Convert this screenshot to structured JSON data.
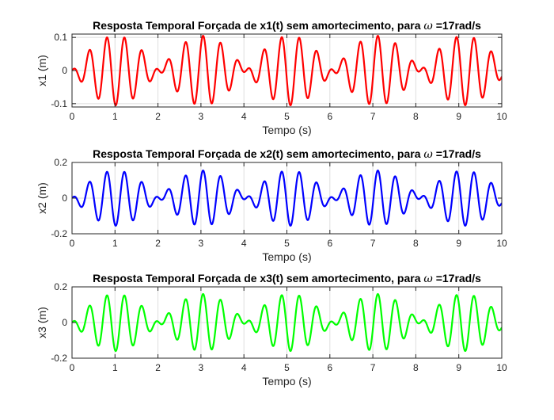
{
  "chart_data": [
    {
      "type": "line",
      "title_prefix": "Resposta Temporal Forçada de x1(t) sem amortecimento, para ",
      "title_symbol": "ω",
      "title_suffix": " =17rad/s",
      "xlabel": "Tempo (s)",
      "ylabel": "x1 (m)",
      "xlim": [
        0,
        10
      ],
      "ylim": [
        -0.11,
        0.11
      ],
      "xticks": [
        0,
        1,
        2,
        3,
        4,
        5,
        6,
        7,
        8,
        9,
        10
      ],
      "yticks": [
        -0.1,
        0,
        0.1
      ],
      "ytick_labels": [
        "-0.1",
        "0",
        "0.1"
      ],
      "grid": true,
      "series": [
        {
          "color": "#ff0000",
          "forcing_frequency_rad_s": 17,
          "beat_frequency_rad_s": 3.1,
          "amplitude_m": 0.105,
          "x": [
            0,
            0.5,
            1,
            1.5,
            2,
            2.5,
            3,
            3.5,
            4,
            4.5,
            5,
            5.5,
            6,
            6.5,
            7,
            7.5,
            8,
            8.5,
            9,
            9.5,
            10
          ],
          "envelope": [
            0,
            0.071,
            0.105,
            0.074,
            0.003,
            0.068,
            0.105,
            0.077,
            0.006,
            0.065,
            0.105,
            0.08,
            0.01,
            0.062,
            0.105,
            0.083,
            0.013,
            0.059,
            0.104,
            0.085,
            0.016
          ]
        }
      ]
    },
    {
      "type": "line",
      "title_prefix": "Resposta Temporal Forçada de x2(t) sem amortecimento, para ",
      "title_symbol": "ω",
      "title_suffix": " =17rad/s",
      "xlabel": "Tempo (s)",
      "ylabel": "x2 (m)",
      "xlim": [
        0,
        10
      ],
      "ylim": [
        -0.2,
        0.2
      ],
      "xticks": [
        0,
        1,
        2,
        3,
        4,
        5,
        6,
        7,
        8,
        9,
        10
      ],
      "yticks": [
        -0.2,
        0,
        0.2
      ],
      "ytick_labels": [
        "-0.2",
        "0",
        "0.2"
      ],
      "grid": true,
      "series": [
        {
          "color": "#0000ff",
          "forcing_frequency_rad_s": 17,
          "beat_frequency_rad_s": 3.1,
          "amplitude_m": 0.155,
          "x": [
            0,
            0.5,
            1,
            1.5,
            2,
            2.5,
            3,
            3.5,
            4,
            4.5,
            5,
            5.5,
            6,
            6.5,
            7,
            7.5,
            8,
            8.5,
            9,
            9.5,
            10
          ],
          "envelope": [
            0,
            0.105,
            0.155,
            0.109,
            0.004,
            0.1,
            0.155,
            0.113,
            0.009,
            0.096,
            0.155,
            0.118,
            0.014,
            0.092,
            0.154,
            0.122,
            0.019,
            0.087,
            0.154,
            0.126,
            0.024
          ]
        }
      ]
    },
    {
      "type": "line",
      "title_prefix": "Resposta Temporal Forçada de x3(t) sem amortecimento, para ",
      "title_symbol": "ω",
      "title_suffix": " =17rad/s",
      "xlabel": "Tempo (s)",
      "ylabel": "x3 (m)",
      "xlim": [
        0,
        10
      ],
      "ylim": [
        -0.2,
        0.2
      ],
      "xticks": [
        0,
        1,
        2,
        3,
        4,
        5,
        6,
        7,
        8,
        9,
        10
      ],
      "yticks": [
        -0.2,
        0,
        0.2
      ],
      "ytick_labels": [
        "-0.2",
        "0",
        "0.2"
      ],
      "grid": true,
      "series": [
        {
          "color": "#00ff00",
          "forcing_frequency_rad_s": 17,
          "beat_frequency_rad_s": 3.1,
          "amplitude_m": 0.16,
          "x": [
            0,
            0.5,
            1,
            1.5,
            2,
            2.5,
            3,
            3.5,
            4,
            4.5,
            5,
            5.5,
            6,
            6.5,
            7,
            7.5,
            8,
            8.5,
            9,
            9.5,
            10
          ],
          "envelope": [
            0,
            0.108,
            0.16,
            0.113,
            0.004,
            0.103,
            0.16,
            0.117,
            0.009,
            0.099,
            0.16,
            0.122,
            0.015,
            0.094,
            0.159,
            0.126,
            0.02,
            0.09,
            0.159,
            0.13,
            0.025
          ]
        }
      ]
    }
  ]
}
